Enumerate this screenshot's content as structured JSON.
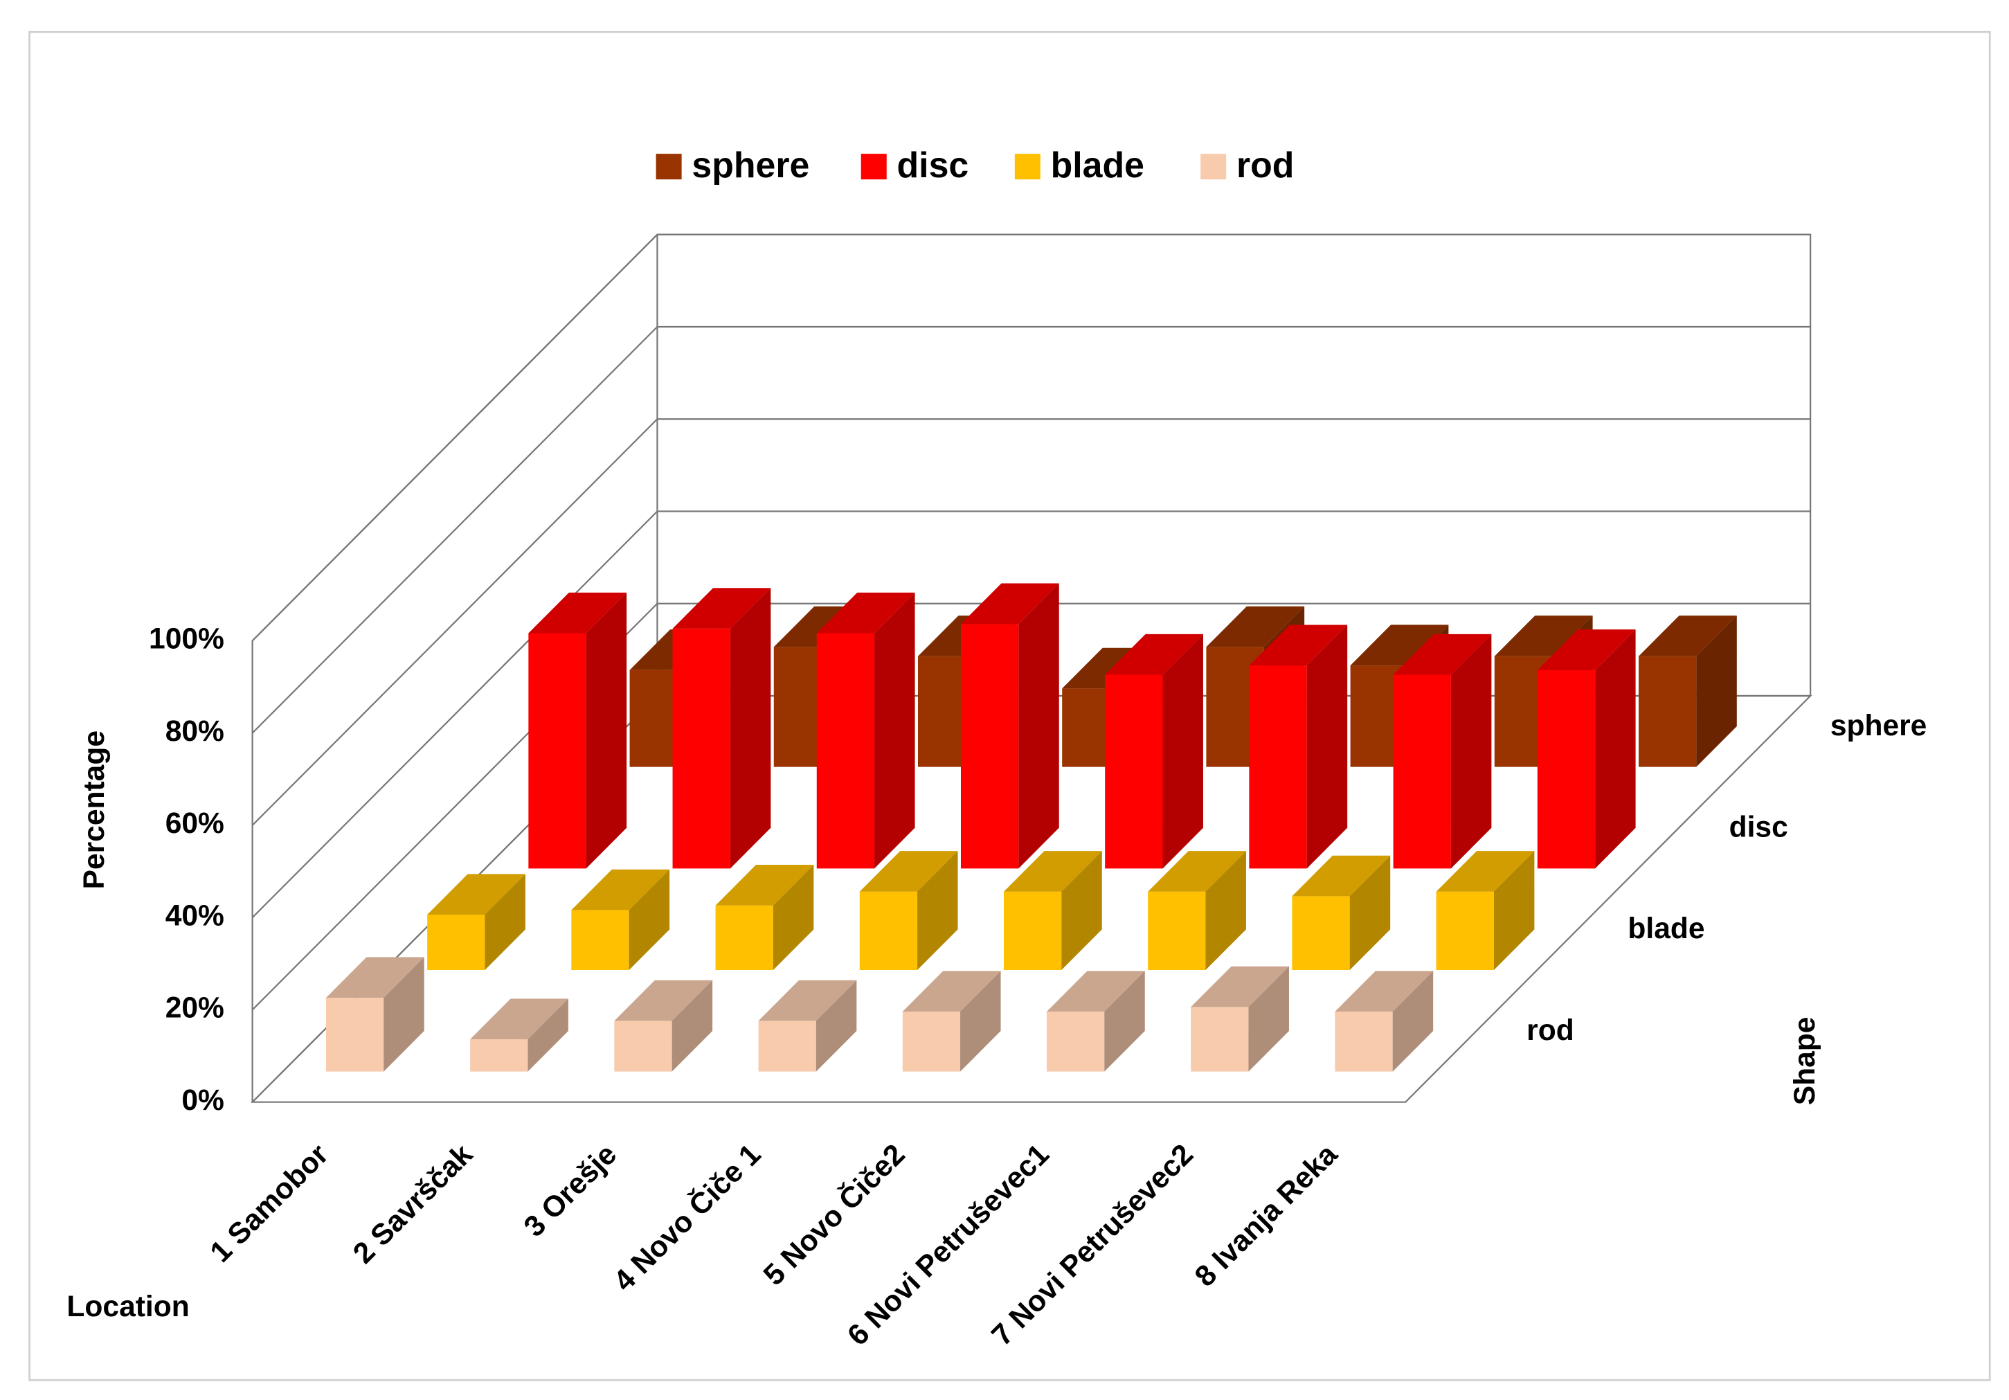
{
  "chart_data": {
    "type": "bar3d",
    "x_label": "Location",
    "y_label": "Percentage",
    "z_label": "Shape",
    "categories": [
      "1 Samobor",
      "2 Savrščak",
      "3 Orešje",
      "4 Novo Čiče 1",
      "5 Novo Čiče2",
      "6 Novi Petruševec1",
      "7 Novi Petruševec2",
      "8 Ivanja Reka"
    ],
    "series": [
      {
        "name": "sphere",
        "color": "#993300",
        "values": [
          21,
          26,
          24,
          17,
          26,
          22,
          24,
          24
        ]
      },
      {
        "name": "disc",
        "color": "#ff0000",
        "values": [
          51,
          52,
          51,
          53,
          42,
          44,
          42,
          43
        ]
      },
      {
        "name": "blade",
        "color": "#ffc000",
        "values": [
          12,
          13,
          14,
          17,
          17,
          17,
          16,
          17
        ]
      },
      {
        "name": "rod",
        "color": "#f8cbad",
        "values": [
          16,
          7,
          11,
          11,
          13,
          13,
          14,
          13
        ]
      }
    ],
    "ylim": [
      0,
      100
    ],
    "yticks": [
      {
        "value": 0,
        "label": "0%"
      },
      {
        "value": 20,
        "label": "20%"
      },
      {
        "value": 40,
        "label": "40%"
      },
      {
        "value": 60,
        "label": "60%"
      },
      {
        "value": 80,
        "label": "80%"
      },
      {
        "value": 100,
        "label": "100%"
      }
    ],
    "grid": true
  }
}
